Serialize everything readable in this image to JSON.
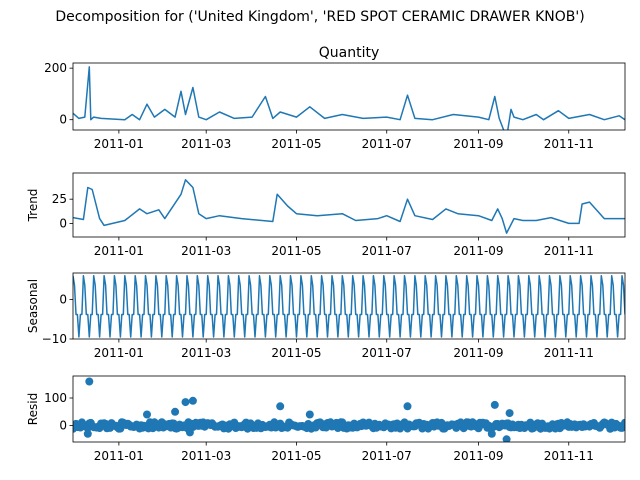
{
  "suptitle": "Decomposition for ('United Kingdom', 'RED SPOT CERAMIC DRAWER KNOB')",
  "colors": {
    "line": "#1f77b4",
    "axis": "#000000",
    "background": "#ffffff"
  },
  "x_tick_labels": [
    "2011-01",
    "2011-03",
    "2011-05",
    "2011-07",
    "2011-09",
    "2011-11"
  ],
  "chart_data": [
    {
      "type": "line",
      "title": "Quantity",
      "ylabel": "",
      "ylim": [
        -40,
        220
      ],
      "yticks": [
        0,
        200
      ],
      "x": [
        "2010-12-01",
        "2010-12-05",
        "2010-12-09",
        "2010-12-12",
        "2010-12-13",
        "2010-12-15",
        "2010-12-20",
        "2011-01-05",
        "2011-01-10",
        "2011-01-15",
        "2011-01-20",
        "2011-01-25",
        "2011-02-01",
        "2011-02-08",
        "2011-02-12",
        "2011-02-15",
        "2011-02-20",
        "2011-02-24",
        "2011-03-01",
        "2011-03-10",
        "2011-03-20",
        "2011-04-01",
        "2011-04-10",
        "2011-04-15",
        "2011-04-20",
        "2011-05-01",
        "2011-05-10",
        "2011-05-20",
        "2011-06-01",
        "2011-06-15",
        "2011-07-01",
        "2011-07-10",
        "2011-07-15",
        "2011-07-20",
        "2011-08-01",
        "2011-08-15",
        "2011-09-01",
        "2011-09-08",
        "2011-09-12",
        "2011-09-15",
        "2011-09-20",
        "2011-09-23",
        "2011-09-25",
        "2011-10-01",
        "2011-10-10",
        "2011-10-15",
        "2011-10-25",
        "2011-11-01",
        "2011-11-15",
        "2011-11-25",
        "2011-12-05",
        "2011-12-09"
      ],
      "values": [
        25,
        5,
        10,
        205,
        0,
        10,
        5,
        0,
        20,
        0,
        60,
        10,
        40,
        10,
        110,
        20,
        125,
        10,
        0,
        30,
        5,
        10,
        90,
        5,
        30,
        10,
        50,
        5,
        20,
        5,
        10,
        0,
        95,
        5,
        0,
        20,
        10,
        0,
        90,
        5,
        -70,
        40,
        10,
        0,
        20,
        0,
        35,
        5,
        20,
        0,
        15,
        0
      ]
    },
    {
      "type": "line",
      "title": "",
      "ylabel": "Trend",
      "ylim": [
        -14,
        52
      ],
      "yticks": [
        0,
        25
      ],
      "ytick_labels": [
        "0",
        "25"
      ],
      "x": [
        "2010-12-01",
        "2010-12-08",
        "2010-12-11",
        "2010-12-14",
        "2010-12-19",
        "2010-12-22",
        "2011-01-05",
        "2011-01-15",
        "2011-01-20",
        "2011-01-28",
        "2011-02-01",
        "2011-02-12",
        "2011-02-15",
        "2011-02-20",
        "2011-02-24",
        "2011-03-01",
        "2011-03-10",
        "2011-03-25",
        "2011-04-15",
        "2011-04-18",
        "2011-04-25",
        "2011-05-01",
        "2011-05-15",
        "2011-06-01",
        "2011-06-10",
        "2011-06-25",
        "2011-07-01",
        "2011-07-10",
        "2011-07-15",
        "2011-07-20",
        "2011-08-01",
        "2011-08-10",
        "2011-08-18",
        "2011-09-01",
        "2011-09-10",
        "2011-09-14",
        "2011-09-17",
        "2011-09-20",
        "2011-09-25",
        "2011-10-01",
        "2011-10-10",
        "2011-10-20",
        "2011-11-01",
        "2011-11-08",
        "2011-11-10",
        "2011-11-15",
        "2011-11-25",
        "2011-12-09"
      ],
      "values": [
        6,
        4,
        37,
        35,
        5,
        -2,
        3,
        15,
        10,
        14,
        5,
        30,
        45,
        37,
        10,
        5,
        8,
        5,
        2,
        30,
        18,
        10,
        8,
        10,
        3,
        5,
        8,
        2,
        25,
        8,
        4,
        15,
        10,
        8,
        3,
        15,
        5,
        -10,
        5,
        3,
        3,
        6,
        0,
        0,
        20,
        22,
        5,
        5
      ]
    },
    {
      "type": "line",
      "title": "",
      "ylabel": "Seasonal",
      "ylim": [
        -10,
        6.7
      ],
      "yticks": [
        -10,
        0
      ],
      "ytick_labels": [
        "−10",
        "0"
      ],
      "period_days": 7,
      "amplitude_high": 6,
      "amplitude_low": -9.5
    },
    {
      "type": "scatter",
      "title": "",
      "ylabel": "Resid",
      "ylim": [
        -60,
        180
      ],
      "yticks": [
        0,
        100
      ],
      "outliers": [
        {
          "x": "2010-12-12",
          "y": 160
        },
        {
          "x": "2010-12-11",
          "y": -30
        },
        {
          "x": "2011-01-20",
          "y": 40
        },
        {
          "x": "2011-02-08",
          "y": 50
        },
        {
          "x": "2011-02-15",
          "y": 85
        },
        {
          "x": "2011-02-20",
          "y": 90
        },
        {
          "x": "2011-02-18",
          "y": -25
        },
        {
          "x": "2011-04-20",
          "y": 70
        },
        {
          "x": "2011-05-10",
          "y": 40
        },
        {
          "x": "2011-07-15",
          "y": 70
        },
        {
          "x": "2011-09-12",
          "y": 75
        },
        {
          "x": "2011-09-20",
          "y": -50
        },
        {
          "x": "2011-09-22",
          "y": 45
        },
        {
          "x": "2011-09-10",
          "y": -30
        }
      ]
    }
  ]
}
